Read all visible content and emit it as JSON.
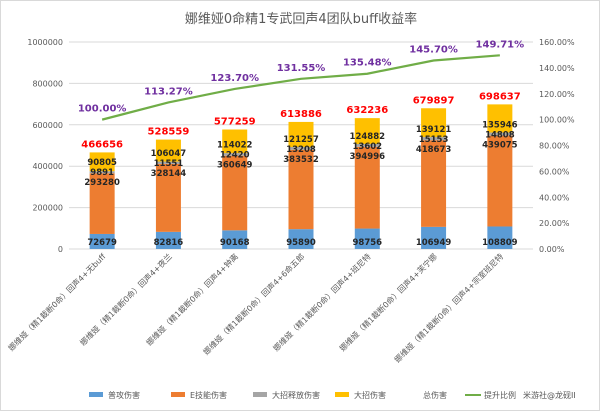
{
  "chart_data": {
    "type": "bar",
    "stacked": true,
    "title": "娜维娅0命精1专武回声4团队buff收益率",
    "categories": [
      "娜维娅（精1裁断0命）回声4+无buff",
      "娜维娅（精1裁断0命）回声4+夜兰",
      "娜维娅（精1裁断0命）回声4+钟离",
      "娜维娅（精1裁断0命）回声4+6命五郎",
      "娜维娅（精1裁断0命）回声4+班尼特",
      "娜维娅（精1裁断0命）回声4+芙宁娜",
      "娜维娅（精1裁断0命）回声4+宗室班尼特"
    ],
    "series": [
      {
        "name": "普攻伤害",
        "color": "#5b9bd5",
        "values": [
          72679,
          82816,
          90168,
          95890,
          98756,
          106949,
          108809
        ]
      },
      {
        "name": "E技能伤害",
        "color": "#ed7d31",
        "values": [
          293280,
          328144,
          360649,
          383532,
          394996,
          418673,
          439075
        ]
      },
      {
        "name": "大招释放伤害",
        "color": "#a5a5a5",
        "values": [
          9891,
          11551,
          12420,
          13208,
          13602,
          15153,
          14808
        ]
      },
      {
        "name": "大招伤害",
        "color": "#ffc000",
        "values": [
          90805,
          106047,
          114022,
          121257,
          124882,
          139121,
          135946
        ]
      }
    ],
    "totals": {
      "name": "总伤害",
      "values": [
        466656,
        528559,
        577259,
        613886,
        632236,
        679897,
        698637
      ]
    },
    "line": {
      "name": "提升比例",
      "color": "#70ad47",
      "axis": "right",
      "values": [
        100.0,
        113.27,
        123.7,
        131.55,
        135.48,
        145.7,
        149.71
      ],
      "labels": [
        "100.00%",
        "113.27%",
        "123.70%",
        "131.55%",
        "135.48%",
        "145.70%",
        "149.71%"
      ]
    },
    "ylim": [
      0,
      1000000
    ],
    "yticks": [
      "0",
      "200000",
      "400000",
      "600000",
      "800000",
      "1000000"
    ],
    "y2lim": [
      0,
      160
    ],
    "y2ticks": [
      "0.00%",
      "20.00%",
      "40.00%",
      "60.00%",
      "80.00%",
      "100.00%",
      "120.00%",
      "140.00%",
      "160.00%"
    ],
    "grid": true,
    "legend_position": "bottom",
    "watermark": "米游社@龙砚II"
  }
}
